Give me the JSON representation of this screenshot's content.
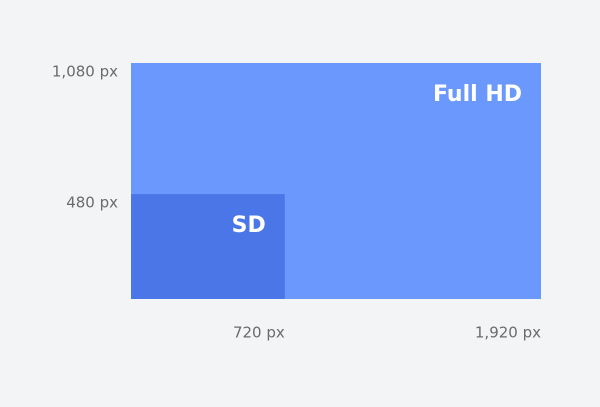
{
  "diagram": {
    "rects": [
      {
        "label": "Full HD",
        "width": 1920,
        "height": 1080,
        "width_label": "1,920 px",
        "height_label": "1,080 px",
        "color": "#6a98fd"
      },
      {
        "label": "SD",
        "width": 720,
        "height": 480,
        "width_label": "720 px",
        "height_label": "480 px",
        "color": "#4a76e8"
      }
    ]
  }
}
